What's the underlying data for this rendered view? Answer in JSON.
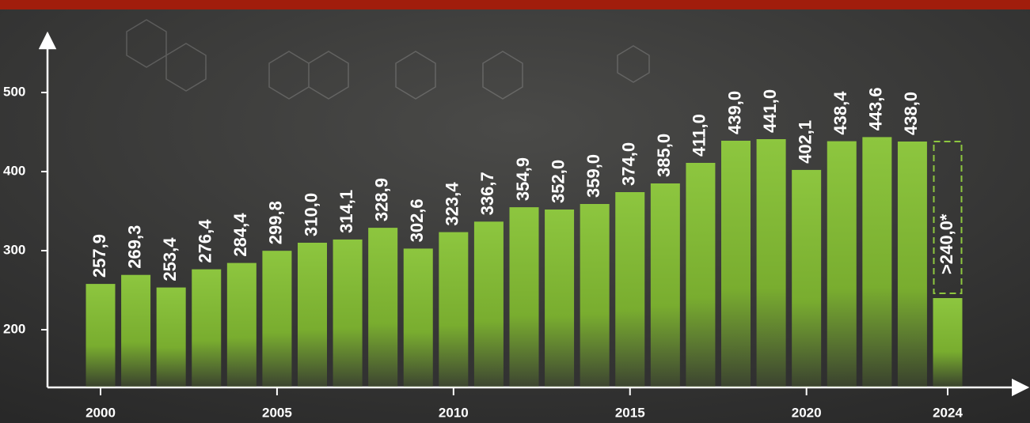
{
  "chart_data": {
    "type": "bar",
    "categories": [
      "2000",
      null,
      null,
      null,
      null,
      "2005",
      null,
      null,
      null,
      null,
      "2010",
      null,
      null,
      null,
      null,
      "2015",
      null,
      null,
      null,
      null,
      "2020",
      null,
      null,
      null,
      "2024"
    ],
    "values": [
      257.9,
      269.3,
      253.4,
      276.4,
      284.4,
      299.8,
      310.0,
      314.1,
      328.9,
      302.6,
      323.4,
      336.7,
      354.9,
      352.0,
      359.0,
      374.0,
      385.0,
      411.0,
      439.0,
      441.0,
      402.1,
      438.4,
      443.6,
      438.0,
      240.0
    ],
    "value_labels": [
      "257,9",
      "269,3",
      "253,4",
      "276,4",
      "284,4",
      "299,8",
      "310,0",
      "314,1",
      "328,9",
      "302,6",
      "323,4",
      "336,7",
      "354,9",
      "352,0",
      "359,0",
      "374,0",
      "385,0",
      "411,0",
      "439,0",
      "441,0",
      "402,1",
      "438,4",
      "443,6",
      "438,0",
      ">240,0*"
    ],
    "color": "#8dc63f",
    "ylim": [
      127,
      572
    ],
    "yticks": [
      200,
      300,
      400,
      500
    ]
  }
}
